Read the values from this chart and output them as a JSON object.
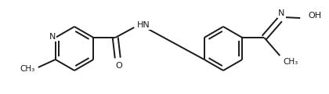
{
  "bg_color": "#ffffff",
  "line_color": "#1a1a1a",
  "text_color": "#1a1a1a",
  "line_width": 1.4,
  "dbo": 0.006,
  "figsize": [
    4.2,
    1.2
  ],
  "dpi": 100,
  "xlim": [
    0,
    420
  ],
  "ylim": [
    0,
    120
  ]
}
